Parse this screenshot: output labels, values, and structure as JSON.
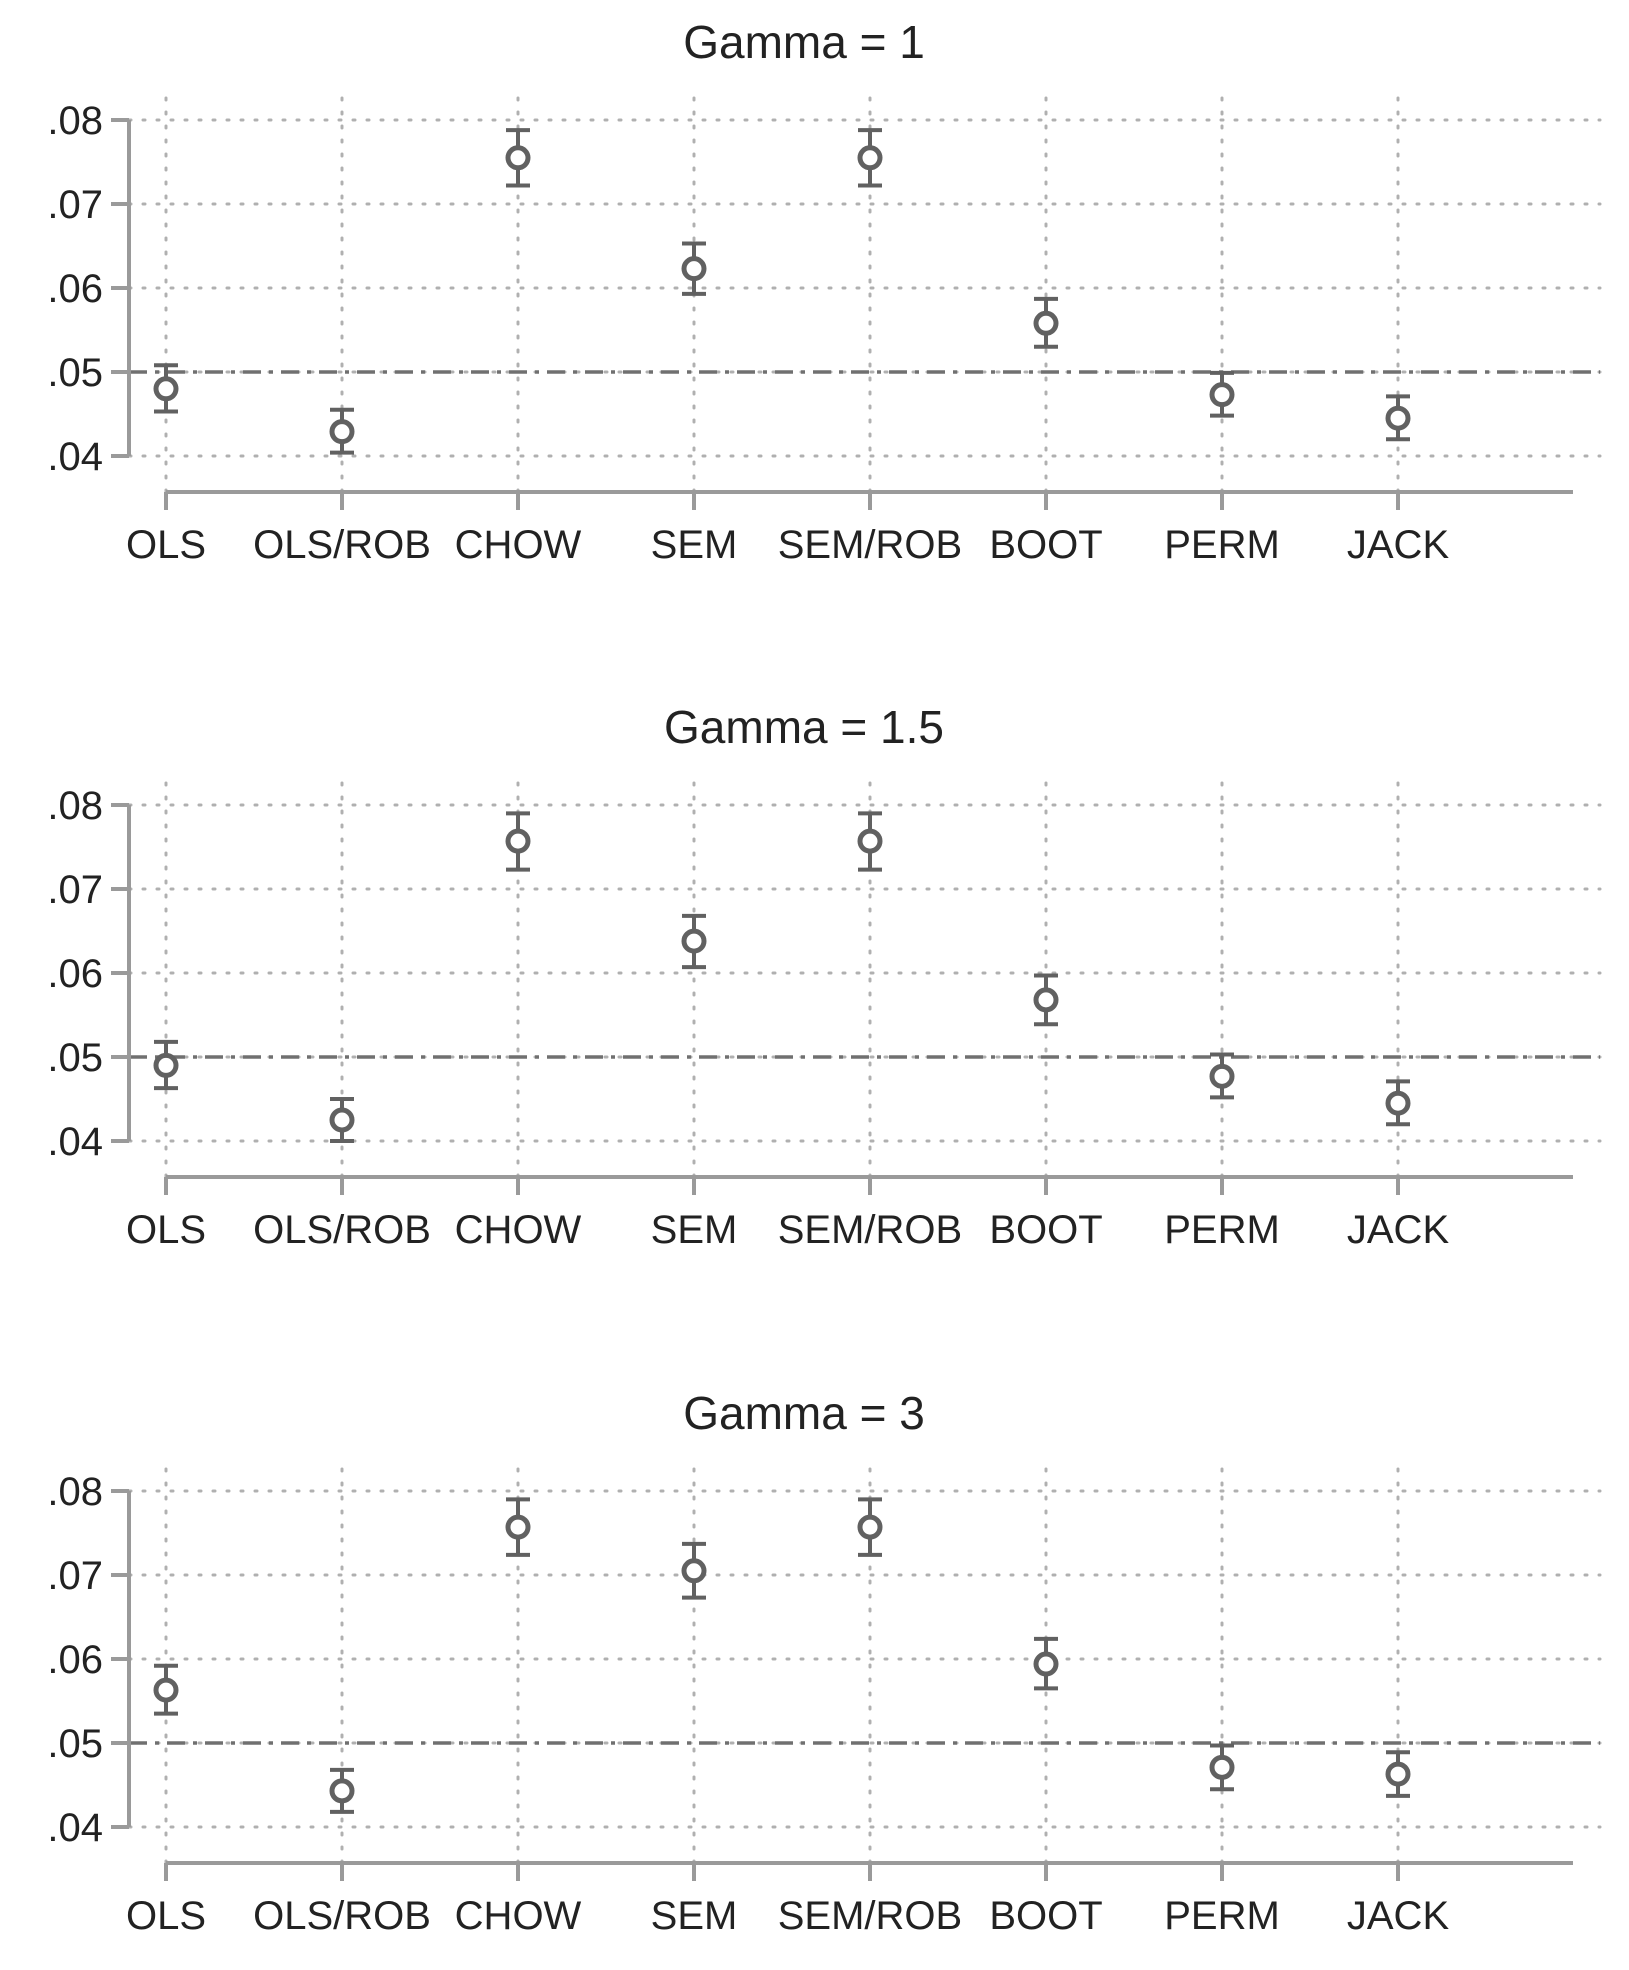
{
  "colors": {
    "marker": "#616161",
    "axis": "#9a9a9a",
    "grid": "#b0b0b0",
    "reference": "#707070",
    "text": "#222222"
  },
  "chart_data": [
    {
      "type": "scatter",
      "title": "Gamma = 1",
      "categories": [
        "OLS",
        "OLS/ROB",
        "CHOW",
        "SEM",
        "SEM/ROB",
        "BOOT",
        "PERM",
        "JACK"
      ],
      "values": [
        0.048,
        0.0429,
        0.0755,
        0.0623,
        0.0755,
        0.0558,
        0.0473,
        0.0445
      ],
      "ci_low": [
        0.0453,
        0.0404,
        0.0722,
        0.0593,
        0.0722,
        0.053,
        0.0448,
        0.042
      ],
      "ci_high": [
        0.0508,
        0.0455,
        0.0788,
        0.0653,
        0.0788,
        0.0587,
        0.0499,
        0.0471
      ],
      "reference_line": 0.05,
      "ylim": [
        0.04,
        0.08
      ],
      "yticks": [
        ".04",
        ".05",
        ".06",
        ".07",
        ".08"
      ],
      "ytick_values": [
        0.04,
        0.05,
        0.06,
        0.07,
        0.08
      ],
      "grid": true
    },
    {
      "type": "scatter",
      "title": "Gamma = 1.5",
      "categories": [
        "OLS",
        "OLS/ROB",
        "CHOW",
        "SEM",
        "SEM/ROB",
        "BOOT",
        "PERM",
        "JACK"
      ],
      "values": [
        0.049,
        0.0425,
        0.0757,
        0.0638,
        0.0757,
        0.0568,
        0.0477,
        0.0445
      ],
      "ci_low": [
        0.0463,
        0.04,
        0.0723,
        0.0607,
        0.0723,
        0.0539,
        0.0452,
        0.042
      ],
      "ci_high": [
        0.0518,
        0.045,
        0.079,
        0.0668,
        0.079,
        0.0597,
        0.0503,
        0.0471
      ],
      "reference_line": 0.05,
      "ylim": [
        0.04,
        0.08
      ],
      "yticks": [
        ".04",
        ".05",
        ".06",
        ".07",
        ".08"
      ],
      "ytick_values": [
        0.04,
        0.05,
        0.06,
        0.07,
        0.08
      ],
      "grid": true
    },
    {
      "type": "scatter",
      "title": "Gamma = 3",
      "categories": [
        "OLS",
        "OLS/ROB",
        "CHOW",
        "SEM",
        "SEM/ROB",
        "BOOT",
        "PERM",
        "JACK"
      ],
      "values": [
        0.0563,
        0.0443,
        0.0757,
        0.0705,
        0.0757,
        0.0594,
        0.0471,
        0.0463
      ],
      "ci_low": [
        0.0535,
        0.0418,
        0.0724,
        0.0673,
        0.0724,
        0.0565,
        0.0445,
        0.0437
      ],
      "ci_high": [
        0.0592,
        0.0468,
        0.079,
        0.0737,
        0.079,
        0.0624,
        0.0497,
        0.0489
      ],
      "reference_line": 0.05,
      "ylim": [
        0.04,
        0.08
      ],
      "yticks": [
        ".04",
        ".05",
        ".06",
        ".07",
        ".08"
      ],
      "ytick_values": [
        0.04,
        0.05,
        0.06,
        0.07,
        0.08
      ],
      "grid": true
    }
  ]
}
